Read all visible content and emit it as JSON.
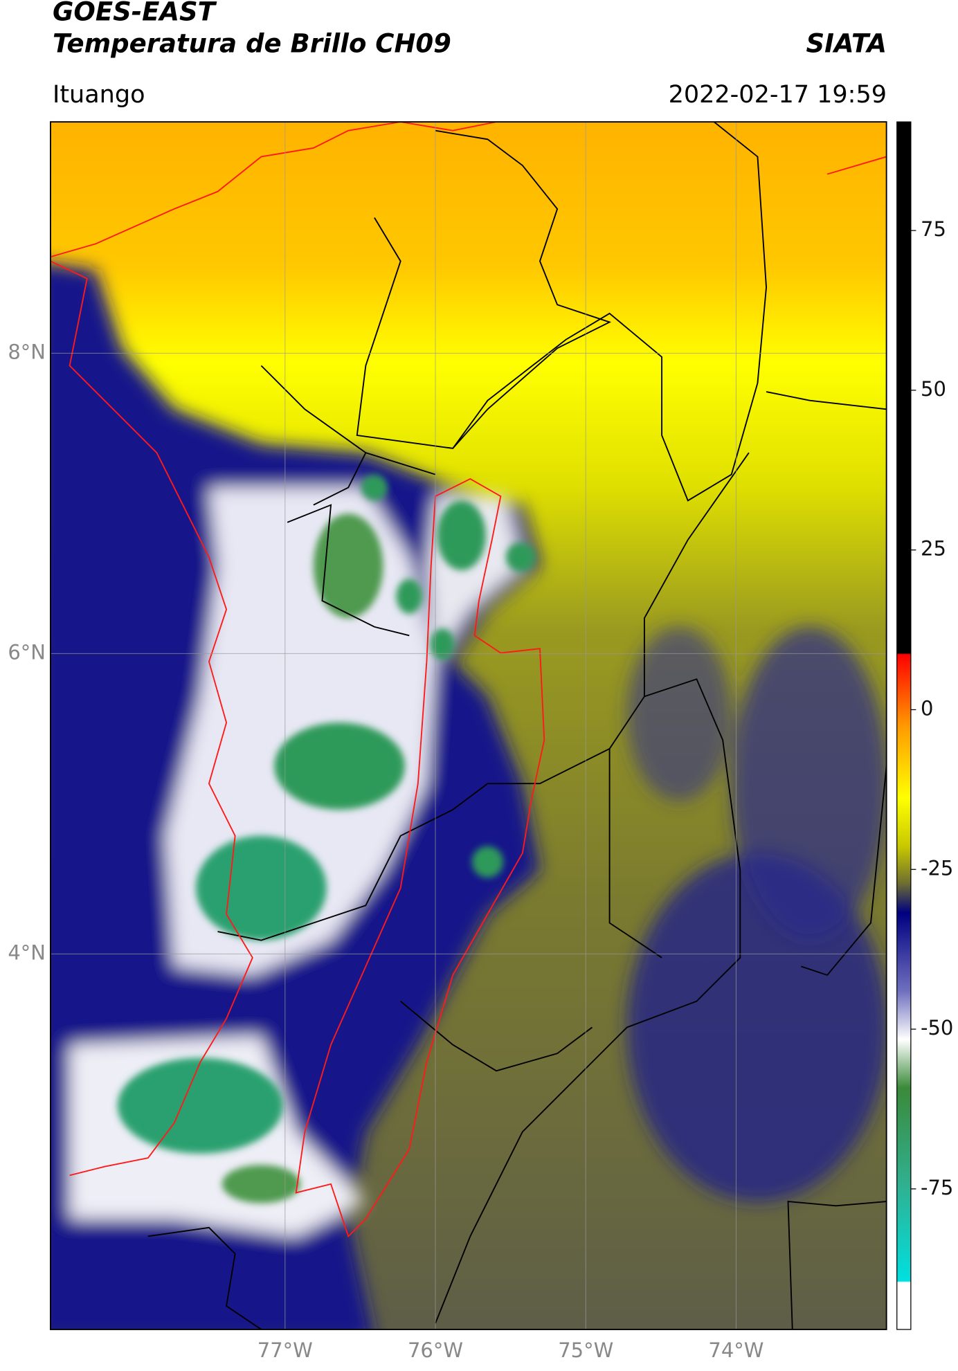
{
  "header": {
    "title": "GOES-EAST",
    "subtitle": "Temperatura de Brillo CH09",
    "brand": "SIATA",
    "location": "Ituango",
    "timestamp": "2022-02-17 19:59"
  },
  "map": {
    "xlim": [
      -78.56,
      -73.0
    ],
    "ylim": [
      1.5,
      9.54
    ],
    "xticks": [
      {
        "value": -77,
        "label": "77°W"
      },
      {
        "value": -76,
        "label": "76°W"
      },
      {
        "value": -75,
        "label": "75°W"
      },
      {
        "value": -74,
        "label": "74°W"
      }
    ],
    "yticks": [
      {
        "value": 4,
        "label": "4°N"
      },
      {
        "value": 6,
        "label": "6°N"
      },
      {
        "value": 8,
        "label": "8°N"
      }
    ],
    "grid": true
  },
  "colorbar": {
    "lim": [
      -97,
      92
    ],
    "ticks": [
      -75,
      -50,
      -25,
      0,
      25,
      50,
      75
    ]
  }
}
